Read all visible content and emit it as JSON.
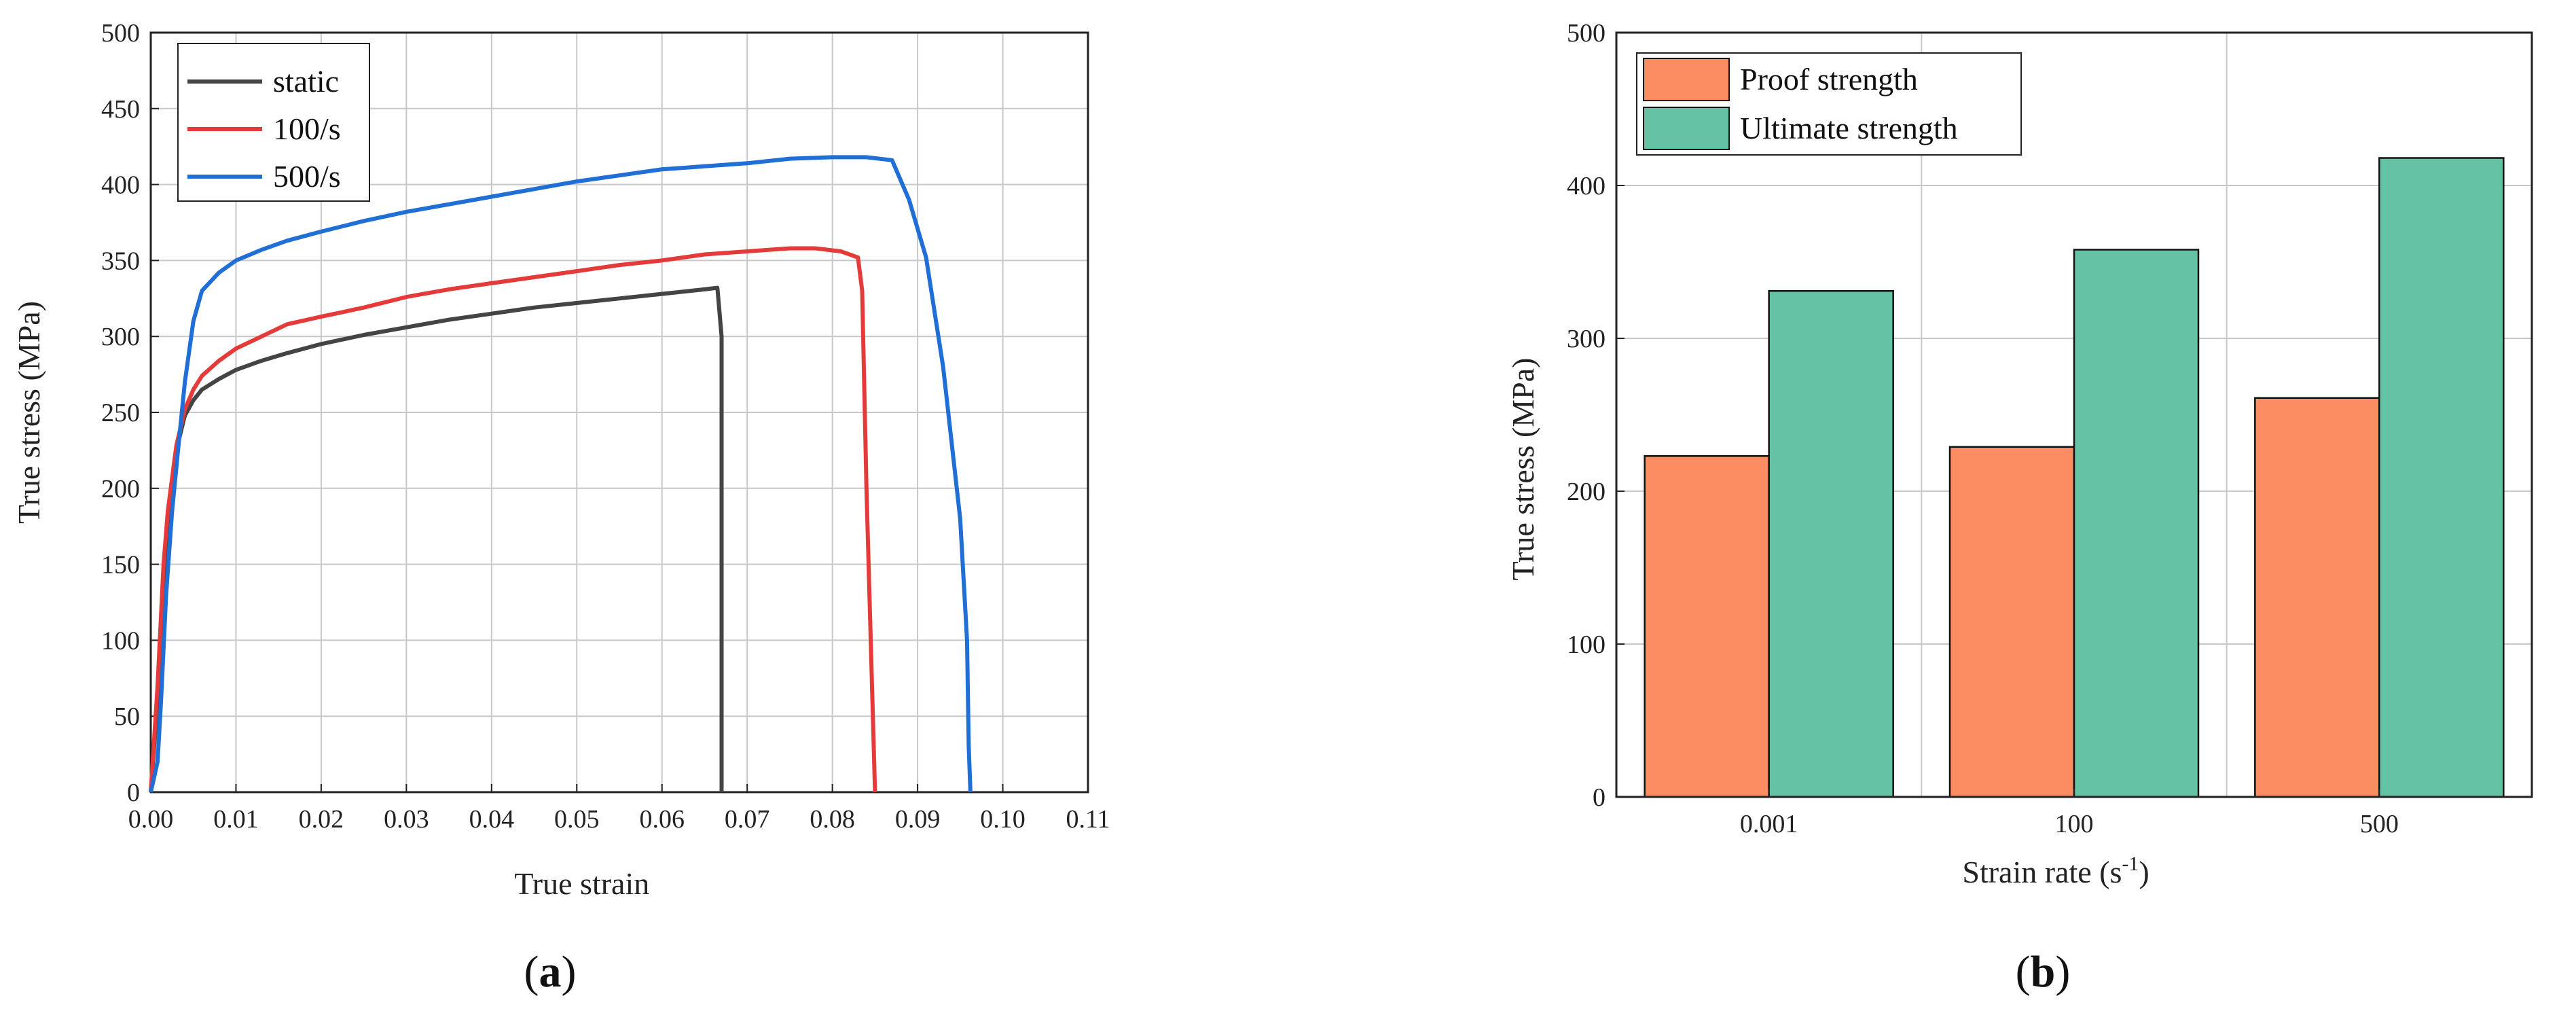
{
  "chart_data": [
    {
      "type": "line",
      "xlabel": "True strain",
      "ylabel": "True stress (MPa)",
      "xlim": [
        0,
        0.11
      ],
      "ylim": [
        0,
        500
      ],
      "xticks": [
        "0.00",
        "0.01",
        "0.02",
        "0.03",
        "0.04",
        "0.05",
        "0.06",
        "0.07",
        "0.08",
        "0.09",
        "0.10",
        "0.11"
      ],
      "yticks": [
        "0",
        "50",
        "100",
        "150",
        "200",
        "250",
        "300",
        "350",
        "400",
        "450",
        "500"
      ],
      "grid": true,
      "legend_position": "top-left",
      "series": [
        {
          "name": "static",
          "color": "#444444",
          "points": [
            [
              0,
              0
            ],
            [
              0.0008,
              60
            ],
            [
              0.0015,
              140
            ],
            [
              0.002,
              180
            ],
            [
              0.003,
              225
            ],
            [
              0.004,
              248
            ],
            [
              0.005,
              258
            ],
            [
              0.006,
              265
            ],
            [
              0.008,
              272
            ],
            [
              0.01,
              278
            ],
            [
              0.013,
              284
            ],
            [
              0.016,
              289
            ],
            [
              0.02,
              295
            ],
            [
              0.025,
              301
            ],
            [
              0.03,
              306
            ],
            [
              0.035,
              311
            ],
            [
              0.04,
              315
            ],
            [
              0.045,
              319
            ],
            [
              0.05,
              322
            ],
            [
              0.055,
              325
            ],
            [
              0.06,
              328
            ],
            [
              0.065,
              331
            ],
            [
              0.0665,
              332
            ],
            [
              0.067,
              300
            ],
            [
              0.067,
              0
            ]
          ]
        },
        {
          "name": "100/s",
          "color": "#e53a3a",
          "points": [
            [
              0,
              0
            ],
            [
              0.0008,
              70
            ],
            [
              0.0015,
              150
            ],
            [
              0.002,
              185
            ],
            [
              0.003,
              228
            ],
            [
              0.004,
              252
            ],
            [
              0.005,
              265
            ],
            [
              0.006,
              274
            ],
            [
              0.008,
              284
            ],
            [
              0.01,
              292
            ],
            [
              0.013,
              300
            ],
            [
              0.016,
              308
            ],
            [
              0.02,
              313
            ],
            [
              0.025,
              319
            ],
            [
              0.03,
              326
            ],
            [
              0.035,
              331
            ],
            [
              0.04,
              335
            ],
            [
              0.045,
              339
            ],
            [
              0.05,
              343
            ],
            [
              0.055,
              347
            ],
            [
              0.06,
              350
            ],
            [
              0.065,
              354
            ],
            [
              0.07,
              356
            ],
            [
              0.075,
              358
            ],
            [
              0.078,
              358
            ],
            [
              0.081,
              356
            ],
            [
              0.083,
              352
            ],
            [
              0.0835,
              330
            ],
            [
              0.084,
              200
            ],
            [
              0.0845,
              100
            ],
            [
              0.085,
              0
            ]
          ]
        },
        {
          "name": "500/s",
          "color": "#1f6fd6",
          "points": [
            [
              0,
              0
            ],
            [
              0.0008,
              20
            ],
            [
              0.0012,
              60
            ],
            [
              0.0018,
              130
            ],
            [
              0.0025,
              185
            ],
            [
              0.0032,
              225
            ],
            [
              0.004,
              270
            ],
            [
              0.005,
              310
            ],
            [
              0.006,
              330
            ],
            [
              0.008,
              342
            ],
            [
              0.01,
              350
            ],
            [
              0.013,
              357
            ],
            [
              0.016,
              363
            ],
            [
              0.02,
              369
            ],
            [
              0.025,
              376
            ],
            [
              0.03,
              382
            ],
            [
              0.035,
              387
            ],
            [
              0.04,
              392
            ],
            [
              0.045,
              397
            ],
            [
              0.05,
              402
            ],
            [
              0.055,
              406
            ],
            [
              0.06,
              410
            ],
            [
              0.065,
              412
            ],
            [
              0.07,
              414
            ],
            [
              0.075,
              417
            ],
            [
              0.08,
              418
            ],
            [
              0.084,
              418
            ],
            [
              0.087,
              416
            ],
            [
              0.089,
              390
            ],
            [
              0.091,
              352
            ],
            [
              0.093,
              280
            ],
            [
              0.095,
              180
            ],
            [
              0.0958,
              100
            ],
            [
              0.096,
              30
            ],
            [
              0.0962,
              0
            ]
          ]
        }
      ],
      "panel_label": "(a)"
    },
    {
      "type": "bar",
      "xlabel": "Strain rate (s",
      "xlabel_sup": "-1",
      "xlabel_end": ")",
      "ylabel": "True stress (MPa)",
      "ylim": [
        0,
        500
      ],
      "yticks": [
        "0",
        "100",
        "200",
        "300",
        "400",
        "500"
      ],
      "grid": true,
      "legend_position": "top-left",
      "categories": [
        "0.001",
        "100",
        "500"
      ],
      "series": [
        {
          "name": "Proof strength",
          "color": "#fc8d62",
          "values": [
            223,
            229,
            261
          ]
        },
        {
          "name": "Ultimate strength",
          "color": "#66c2a5",
          "values": [
            331,
            358,
            418
          ]
        }
      ],
      "panel_label": "(b)"
    }
  ]
}
